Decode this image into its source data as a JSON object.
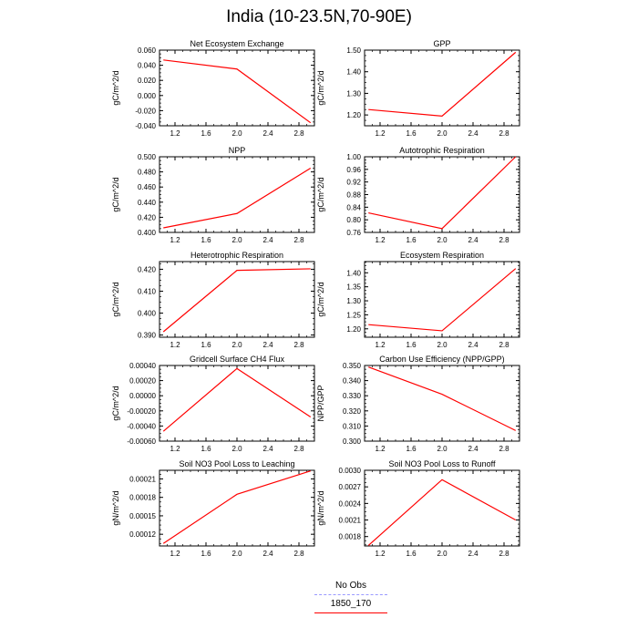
{
  "title": "India (10-23.5N,70-90E)",
  "legend": {
    "items": [
      {
        "label": "No Obs",
        "color": "#9999ff",
        "dash": true
      },
      {
        "label": "1850_170",
        "color": "#ff0000",
        "dash": false
      }
    ]
  },
  "line_color": "#ff0000",
  "chart_data": [
    {
      "type": "line",
      "title": "Net Ecosystem Exchange",
      "ylabel": "gC/m^2/d",
      "x": [
        1.05,
        2.0,
        2.95
      ],
      "y": [
        0.047,
        0.035,
        -0.036
      ],
      "xlim": [
        1.0,
        3.0
      ],
      "ylim": [
        -0.04,
        0.06
      ],
      "xticks": [
        "1.2",
        "1.6",
        "2.0",
        "2.4",
        "2.8"
      ],
      "yticks": [
        "-0.040",
        "-0.020",
        "0.000",
        "0.020",
        "0.040",
        "0.060"
      ]
    },
    {
      "type": "line",
      "title": "GPP",
      "ylabel": "gC/m^2/d",
      "x": [
        1.05,
        2.0,
        2.95
      ],
      "y": [
        1.225,
        1.195,
        1.49
      ],
      "xlim": [
        1.0,
        3.0
      ],
      "ylim": [
        1.15,
        1.5
      ],
      "xticks": [
        "1.2",
        "1.6",
        "2.0",
        "2.4",
        "2.8"
      ],
      "yticks": [
        "1.20",
        "1.30",
        "1.40",
        "1.50"
      ]
    },
    {
      "type": "line",
      "title": "NPP",
      "ylabel": "gC/m^2/d",
      "x": [
        1.05,
        2.0,
        2.95
      ],
      "y": [
        0.406,
        0.425,
        0.485
      ],
      "xlim": [
        1.0,
        3.0
      ],
      "ylim": [
        0.4,
        0.5
      ],
      "xticks": [
        "1.2",
        "1.6",
        "2.0",
        "2.4",
        "2.8"
      ],
      "yticks": [
        "0.400",
        "0.420",
        "0.440",
        "0.460",
        "0.480",
        "0.500"
      ]
    },
    {
      "type": "line",
      "title": "Autotrophic Respiration",
      "ylabel": "gC/m^2/d",
      "x": [
        1.05,
        2.0,
        2.95
      ],
      "y": [
        0.822,
        0.772,
        1.0
      ],
      "xlim": [
        1.0,
        3.0
      ],
      "ylim": [
        0.76,
        1.0
      ],
      "xticks": [
        "1.2",
        "1.6",
        "2.0",
        "2.4",
        "2.8"
      ],
      "yticks": [
        "0.76",
        "0.80",
        "0.84",
        "0.88",
        "0.92",
        "0.96",
        "1.00"
      ]
    },
    {
      "type": "line",
      "title": "Heterotrophic Respiration",
      "ylabel": "gC/m^2/d",
      "x": [
        1.05,
        2.0,
        2.95
      ],
      "y": [
        0.3915,
        0.4195,
        0.4202
      ],
      "xlim": [
        1.0,
        3.0
      ],
      "ylim": [
        0.389,
        0.4235
      ],
      "xticks": [
        "1.2",
        "1.6",
        "2.0",
        "2.4",
        "2.8"
      ],
      "yticks": [
        "0.390",
        "0.400",
        "0.410",
        "0.420"
      ]
    },
    {
      "type": "line",
      "title": "Ecosystem Respiration",
      "ylabel": "gC/m^2/d",
      "x": [
        1.05,
        2.0,
        2.95
      ],
      "y": [
        1.215,
        1.193,
        1.415
      ],
      "xlim": [
        1.0,
        3.0
      ],
      "ylim": [
        1.17,
        1.44
      ],
      "xticks": [
        "1.2",
        "1.6",
        "2.0",
        "2.4",
        "2.8"
      ],
      "yticks": [
        "1.20",
        "1.25",
        "1.30",
        "1.35",
        "1.40"
      ]
    },
    {
      "type": "line",
      "title": "Gridcell Surface CH4 Flux",
      "ylabel": "gC/m^2/d",
      "x": [
        1.05,
        2.0,
        2.95
      ],
      "y": [
        -0.00047,
        0.00036,
        -0.00028
      ],
      "xlim": [
        1.0,
        3.0
      ],
      "ylim": [
        -0.0006,
        0.0004
      ],
      "xticks": [
        "1.2",
        "1.6",
        "2.0",
        "2.4",
        "2.8"
      ],
      "yticks": [
        "-0.00060",
        "-0.00040",
        "-0.00020",
        "0.00000",
        "0.00020",
        "0.00040"
      ]
    },
    {
      "type": "line",
      "title": "Carbon Use Efficiency (NPP/GPP)",
      "ylabel": "NPP/GPP",
      "x": [
        1.05,
        2.0,
        2.95
      ],
      "y": [
        0.349,
        0.331,
        0.307
      ],
      "xlim": [
        1.0,
        3.0
      ],
      "ylim": [
        0.3,
        0.35
      ],
      "xticks": [
        "1.2",
        "1.6",
        "2.0",
        "2.4",
        "2.8"
      ],
      "yticks": [
        "0.300",
        "0.310",
        "0.320",
        "0.330",
        "0.340",
        "0.350"
      ]
    },
    {
      "type": "line",
      "title": "Soil NO3 Pool Loss to Leaching",
      "ylabel": "gN/m^2/d",
      "x": [
        1.05,
        2.0,
        2.95
      ],
      "y": [
        0.000105,
        0.000185,
        0.000223
      ],
      "xlim": [
        1.0,
        3.0
      ],
      "ylim": [
        0.000101,
        0.000224
      ],
      "xticks": [
        "1.2",
        "1.6",
        "2.0",
        "2.4",
        "2.8"
      ],
      "yticks": [
        "0.00012",
        "0.00015",
        "0.00018",
        "0.00021"
      ]
    },
    {
      "type": "line",
      "title": "Soil NO3 Pool Loss to Runoff",
      "ylabel": "gN/m^2/d",
      "x": [
        1.05,
        2.0,
        2.95
      ],
      "y": [
        0.00164,
        0.00283,
        0.0021
      ],
      "xlim": [
        1.0,
        3.0
      ],
      "ylim": [
        0.00163,
        0.003
      ],
      "xticks": [
        "1.2",
        "1.6",
        "2.0",
        "2.4",
        "2.8"
      ],
      "yticks": [
        "0.0018",
        "0.0021",
        "0.0024",
        "0.0027",
        "0.0030"
      ]
    }
  ]
}
